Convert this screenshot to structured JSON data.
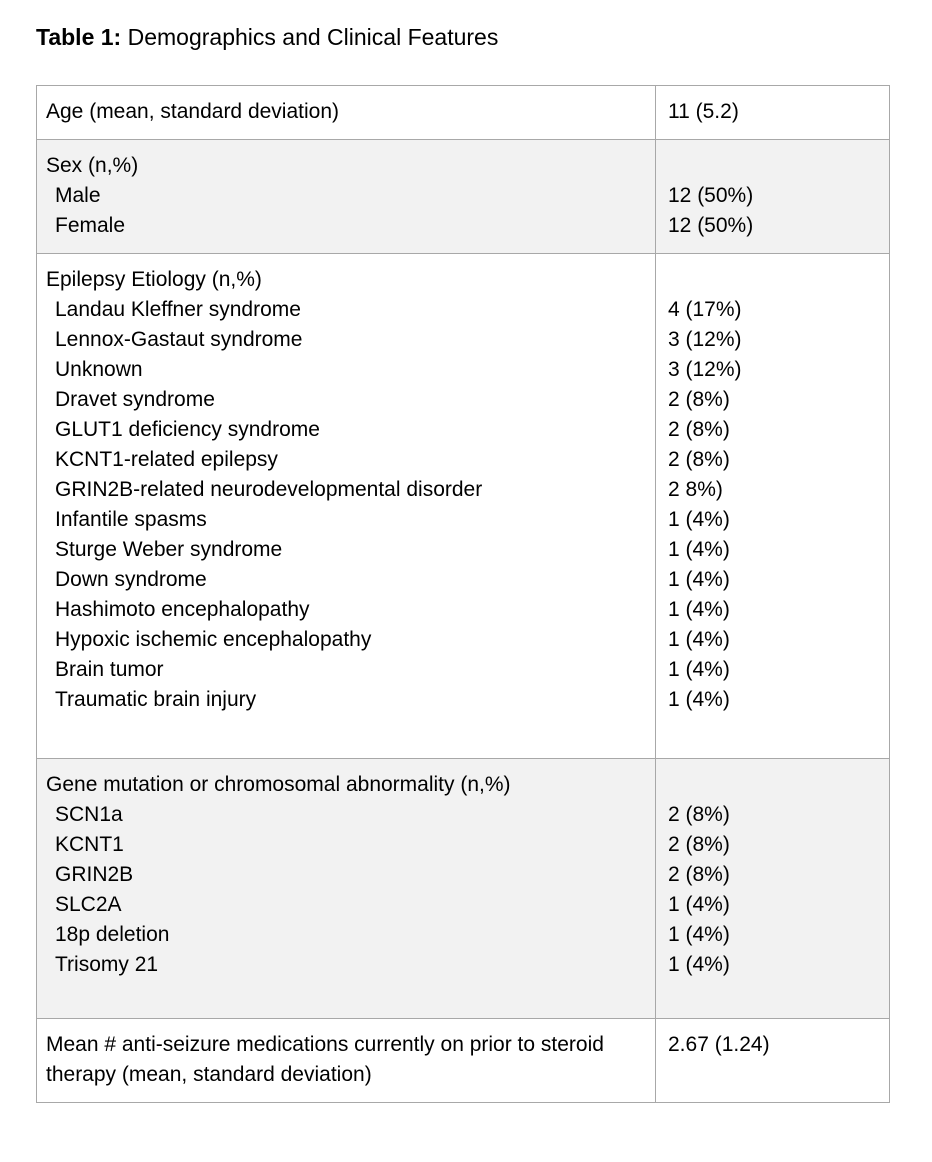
{
  "title": {
    "prefix": "Table 1:",
    "text": "Demographics and Clinical Features"
  },
  "table": {
    "columns": [
      "characteristic",
      "value"
    ],
    "sections": [
      {
        "shaded": false,
        "rows": [
          {
            "label": "Age (mean, standard deviation)",
            "value": "11 (5.2)",
            "indent": false
          }
        ]
      },
      {
        "shaded": true,
        "rows": [
          {
            "label": "Sex (n,%)",
            "value": "",
            "indent": false
          },
          {
            "label": "Male",
            "value": "12 (50%)",
            "indent": true
          },
          {
            "label": "Female",
            "value": "12 (50%)",
            "indent": true
          }
        ]
      },
      {
        "shaded": false,
        "rows": [
          {
            "label": "Epilepsy Etiology (n,%)",
            "value": "",
            "indent": false
          },
          {
            "label": "Landau Kleffner syndrome",
            "value": "4 (17%)",
            "indent": true
          },
          {
            "label": "Lennox-Gastaut syndrome",
            "value": "3 (12%)",
            "indent": true
          },
          {
            "label": "Unknown",
            "value": "3 (12%)",
            "indent": true
          },
          {
            "label": "Dravet syndrome",
            "value": "2 (8%)",
            "indent": true
          },
          {
            "label": "GLUT1 deficiency syndrome",
            "value": "2 (8%)",
            "indent": true
          },
          {
            "label": "KCNT1-related epilepsy",
            "value": "2 (8%)",
            "indent": true
          },
          {
            "label": "GRIN2B-related neurodevelopmental disorder",
            "value": "2 8%)",
            "indent": true
          },
          {
            "label": "Infantile spasms",
            "value": "1 (4%)",
            "indent": true
          },
          {
            "label": "Sturge Weber syndrome",
            "value": "1 (4%)",
            "indent": true
          },
          {
            "label": "Down syndrome",
            "value": "1 (4%)",
            "indent": true
          },
          {
            "label": "Hashimoto encephalopathy",
            "value": "1 (4%)",
            "indent": true
          },
          {
            "label": "Hypoxic ischemic encephalopathy",
            "value": "1 (4%)",
            "indent": true
          },
          {
            "label": "Brain tumor",
            "value": "1 (4%)",
            "indent": true
          },
          {
            "label": "Traumatic brain injury",
            "value": "1 (4%)",
            "indent": true
          }
        ]
      },
      {
        "shaded": true,
        "rows": [
          {
            "label": "Gene mutation or chromosomal abnormality (n,%)",
            "value": "",
            "indent": false
          },
          {
            "label": "SCN1a",
            "value": "2 (8%)",
            "indent": true
          },
          {
            "label": "KCNT1",
            "value": "2 (8%)",
            "indent": true
          },
          {
            "label": "GRIN2B",
            "value": "2 (8%)",
            "indent": true
          },
          {
            "label": "SLC2A",
            "value": "1 (4%)",
            "indent": true
          },
          {
            "label": "18p deletion",
            "value": "1 (4%)",
            "indent": true
          },
          {
            "label": "Trisomy 21",
            "value": "1 (4%)",
            "indent": true
          }
        ]
      },
      {
        "shaded": false,
        "rows": [
          {
            "label": "Mean # anti-seizure medications currently on prior to steroid therapy (mean, standard deviation)",
            "value": "2.67 (1.24)",
            "indent": false
          }
        ]
      }
    ]
  },
  "colors": {
    "page_bg": "#ffffff",
    "shaded_bg": "#f2f2f2",
    "border": "#a8a8a8",
    "text": "#000000"
  }
}
